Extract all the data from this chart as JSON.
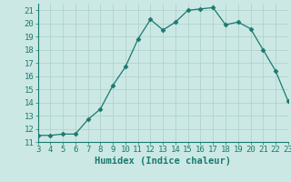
{
  "x": [
    3,
    4,
    5,
    6,
    7,
    8,
    9,
    10,
    11,
    12,
    13,
    14,
    15,
    16,
    17,
    18,
    19,
    20,
    21,
    22,
    23
  ],
  "y": [
    11.5,
    11.5,
    11.6,
    11.6,
    12.7,
    13.5,
    15.3,
    16.7,
    18.8,
    20.3,
    19.5,
    20.1,
    21.0,
    21.1,
    21.2,
    19.9,
    20.1,
    19.6,
    18.0,
    16.4,
    14.1
  ],
  "xlabel": "Humidex (Indice chaleur)",
  "xlim": [
    3,
    23
  ],
  "ylim": [
    11,
    21.5
  ],
  "yticks": [
    11,
    12,
    13,
    14,
    15,
    16,
    17,
    18,
    19,
    20,
    21
  ],
  "xticks": [
    3,
    4,
    5,
    6,
    7,
    8,
    9,
    10,
    11,
    12,
    13,
    14,
    15,
    16,
    17,
    18,
    19,
    20,
    21,
    22,
    23
  ],
  "line_color": "#1a7a6e",
  "marker": "D",
  "marker_size": 2.5,
  "bg_color": "#cce8e4",
  "grid_color": "#aacfca",
  "tick_label_fontsize": 6.5,
  "xlabel_fontsize": 7.5
}
